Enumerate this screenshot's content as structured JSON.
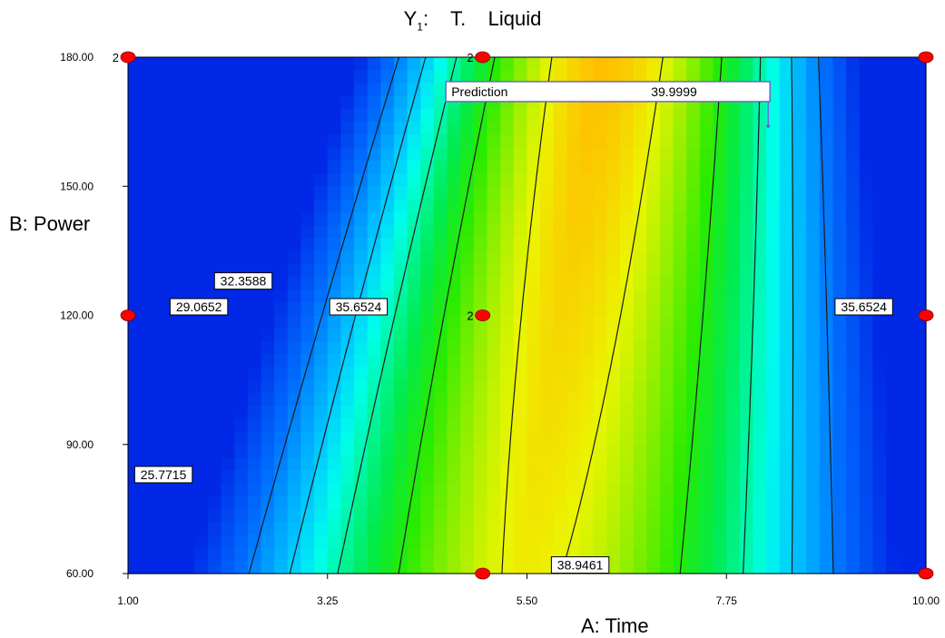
{
  "chart_data": {
    "type": "contour",
    "title_prefix": "Y",
    "title_subscript": "1",
    "title_suffix": ":    T.    Liquid",
    "xlabel": "A: Time",
    "ylabel": "B: Power",
    "xlim": [
      1.0,
      10.0
    ],
    "ylim": [
      60.0,
      180.0
    ],
    "x_ticks": [
      "1.00",
      "3.25",
      "5.50",
      "7.75",
      "10.00"
    ],
    "x_tick_values": [
      1.0,
      3.25,
      5.5,
      7.75,
      10.0
    ],
    "y_ticks": [
      "60.00",
      "90.00",
      "120.00",
      "150.00",
      "180.00"
    ],
    "y_tick_values": [
      60,
      90,
      120,
      150,
      180
    ],
    "contours": [
      {
        "label": "25.7715",
        "value": 25.7715,
        "label_at": [
          1.4,
          83
        ]
      },
      {
        "label": "29.0652",
        "value": 29.0652,
        "label_at": [
          1.8,
          122
        ]
      },
      {
        "label": "32.3588",
        "value": 32.3588,
        "label_at": [
          2.3,
          128
        ]
      },
      {
        "label": "35.6524",
        "value": 35.6524,
        "label_at": [
          3.6,
          122
        ]
      },
      {
        "label": "35.6524",
        "value": 35.6524,
        "label_at": [
          9.3,
          122
        ]
      },
      {
        "label": "38.9461",
        "value": 38.9461,
        "label_at": [
          6.1,
          62
        ]
      }
    ],
    "design_points": [
      {
        "x": 1.0,
        "y": 180,
        "count": "2"
      },
      {
        "x": 5.0,
        "y": 180,
        "count": "2"
      },
      {
        "x": 10.0,
        "y": 180,
        "count": ""
      },
      {
        "x": 1.0,
        "y": 120,
        "count": ""
      },
      {
        "x": 5.0,
        "y": 120,
        "count": "2"
      },
      {
        "x": 10.0,
        "y": 120,
        "count": ""
      },
      {
        "x": 5.0,
        "y": 60,
        "count": ""
      },
      {
        "x": 10.0,
        "y": 60,
        "count": ""
      }
    ],
    "prediction": {
      "label": "Prediction",
      "value": "39.9999",
      "at": [
        5.2,
        172
      ]
    },
    "colors": {
      "low": "#0030ff",
      "mid_low": "#00ffff",
      "mid": "#00e000",
      "mid_high": "#c8f000",
      "high": "#ffb400",
      "point": "#ff0000"
    }
  }
}
